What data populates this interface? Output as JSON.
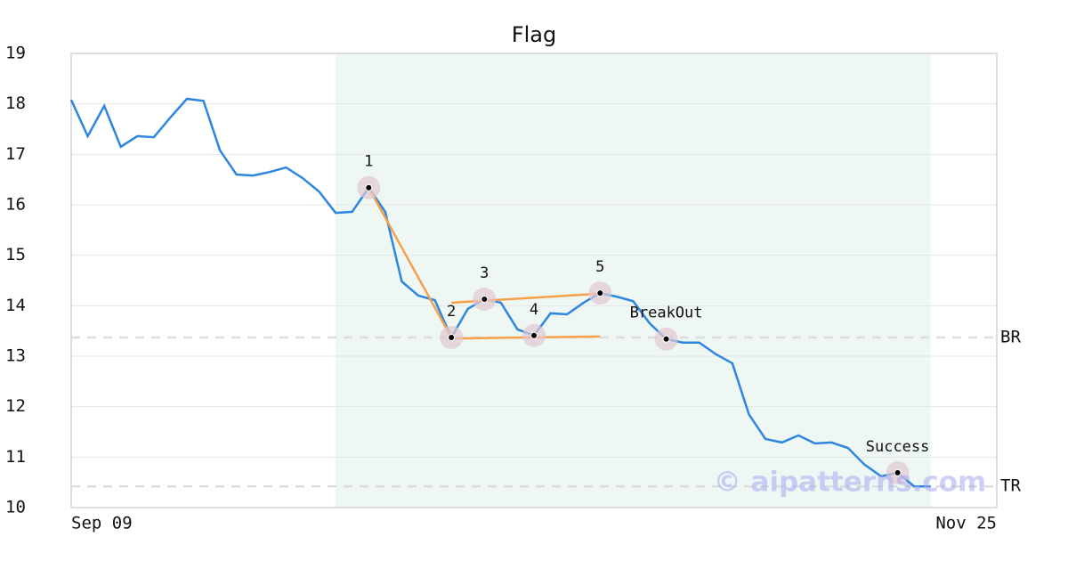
{
  "chart_data": {
    "type": "line",
    "title": "Flag",
    "categories": [
      "Sep 09",
      null,
      null,
      null,
      null,
      null,
      null,
      null,
      null,
      null,
      null,
      null,
      null,
      null,
      null,
      null,
      null,
      null,
      null,
      null,
      null,
      null,
      null,
      null,
      null,
      null,
      null,
      null,
      null,
      null,
      null,
      null,
      null,
      null,
      null,
      null,
      null,
      null,
      null,
      null,
      null,
      null,
      null,
      null,
      null,
      null,
      null,
      null,
      null,
      null,
      null,
      null,
      null,
      null,
      null,
      null,
      "Nov 25"
    ],
    "series": [
      {
        "color": "#2e86de",
        "values": [
          18.08,
          17.36,
          17.96,
          17.15,
          17.36,
          17.34,
          17.73,
          18.1,
          18.06,
          17.08,
          16.6,
          16.58,
          16.65,
          16.74,
          16.53,
          16.26,
          15.84,
          15.86,
          16.34,
          15.86,
          14.48,
          14.2,
          14.11,
          13.37,
          13.94,
          14.13,
          14.06,
          13.53,
          13.41,
          13.85,
          13.83,
          14.06,
          14.25,
          14.18,
          14.09,
          13.65,
          13.34,
          13.27,
          13.27,
          13.04,
          12.86,
          11.85,
          11.36,
          11.29,
          11.43,
          11.27,
          11.29,
          11.18,
          10.85,
          10.62,
          10.69,
          10.42,
          10.42,
          null,
          null,
          null,
          null
        ]
      }
    ],
    "ylim": [
      10,
      19
    ],
    "yticks": [
      10,
      11,
      12,
      13,
      14,
      15,
      16,
      17,
      18,
      19
    ],
    "grid": true,
    "highlight_range": [
      16,
      52
    ],
    "highlight_color": "#eef7f3",
    "levels": [
      {
        "label": "BR",
        "value": 13.37
      },
      {
        "label": "TR",
        "value": 10.42
      }
    ],
    "trend_lines": [
      {
        "color": "#f7a04b",
        "x": [
          18,
          23
        ],
        "y": [
          16.34,
          13.37
        ]
      },
      {
        "color": "#f7a04b",
        "x": [
          23,
          32
        ],
        "y": [
          14.06,
          14.24
        ]
      },
      {
        "color": "#f7a04b",
        "x": [
          23,
          32
        ],
        "y": [
          13.35,
          13.39
        ]
      }
    ],
    "annotations": [
      {
        "label": "1",
        "index": 18
      },
      {
        "label": "2",
        "index": 23
      },
      {
        "label": "3",
        "index": 25
      },
      {
        "label": "4",
        "index": 28
      },
      {
        "label": "5",
        "index": 32
      },
      {
        "label": "BreakOut",
        "index": 36
      },
      {
        "label": "Success",
        "index": 50
      }
    ],
    "watermark": "© aipatterns.com"
  }
}
